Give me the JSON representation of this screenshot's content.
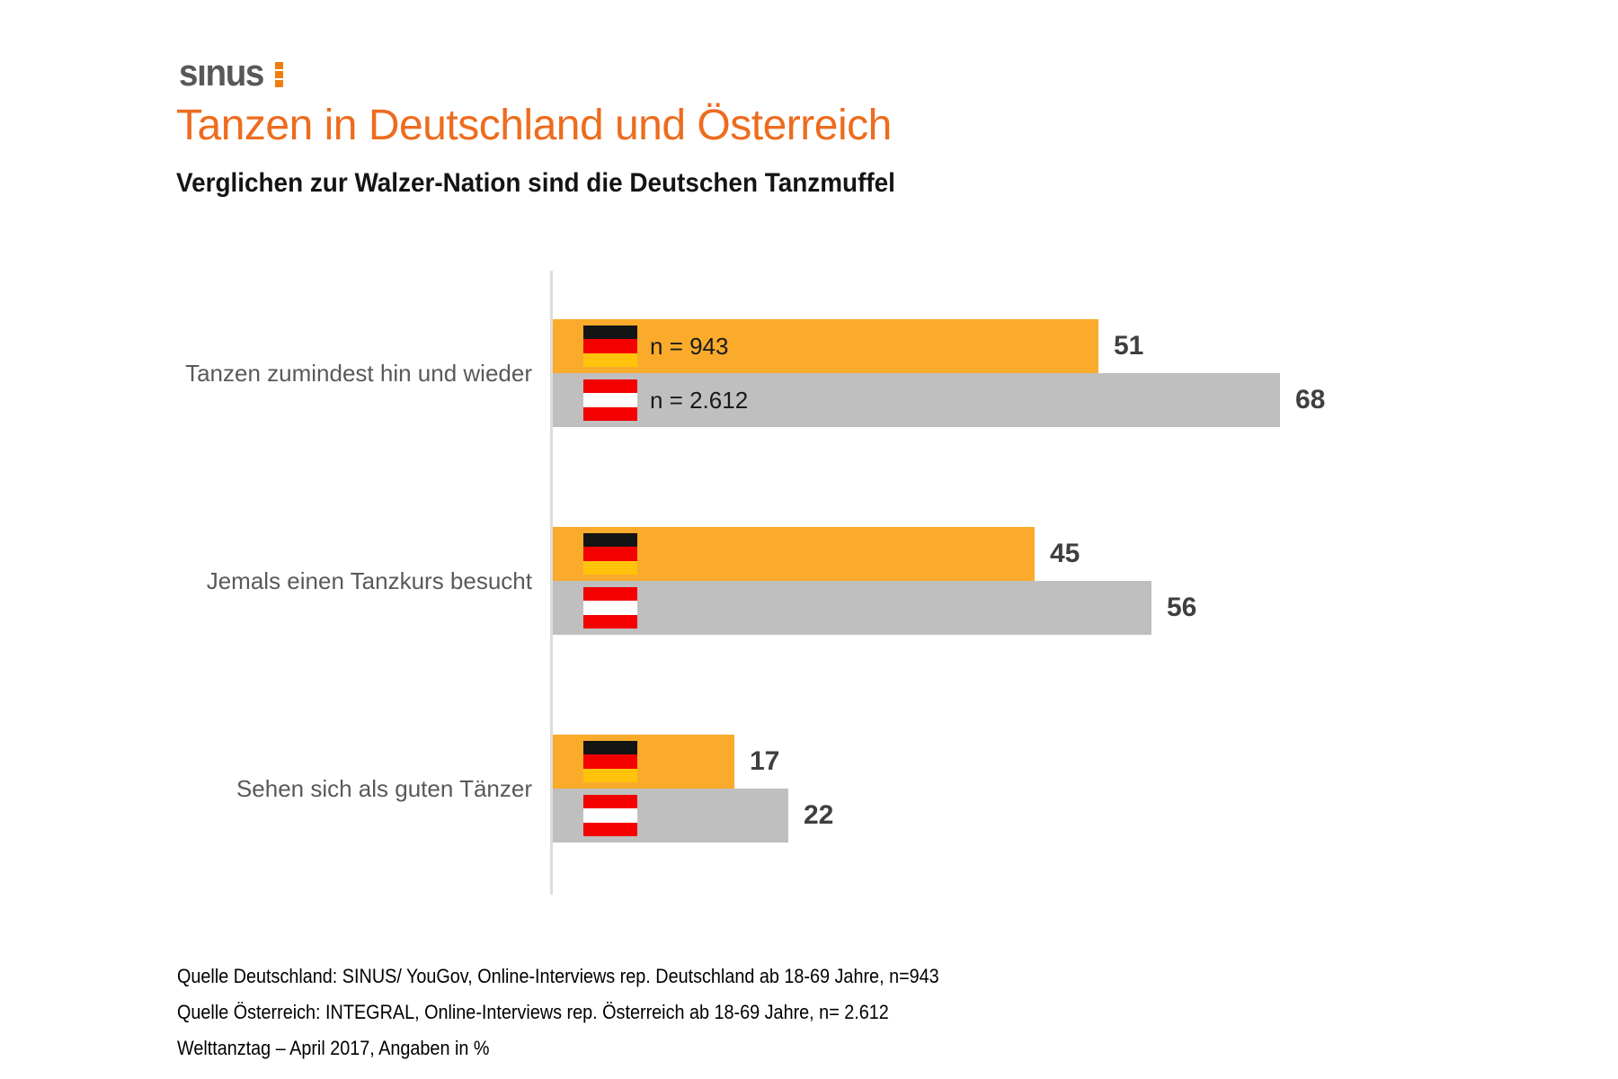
{
  "brand": {
    "logo_text": "sınus"
  },
  "header": {
    "title": "Tanzen in Deutschland und Österreich",
    "subtitle": "Verglichen zur Walzer-Nation sind die Deutschen Tanzmuffel"
  },
  "chart_data": {
    "type": "bar",
    "orientation": "horizontal",
    "title": "Tanzen in Deutschland und Österreich",
    "subtitle": "Verglichen zur Walzer-Nation sind die Deutschen Tanzmuffel",
    "unit": "%",
    "grid": false,
    "legend": "flag icons inline on bars",
    "value_labels": true,
    "categories": [
      "Tanzen zumindest hin und wieder",
      "Jemals einen Tanzkurs besucht",
      "Sehen sich als guten Tänzer"
    ],
    "series": [
      {
        "name": "Deutschland",
        "flag": "germany",
        "flag_stripes": [
          "#141414",
          "#F40000",
          "#FFC30B"
        ],
        "color": "#FAAB2B",
        "sample_label": "n = 943",
        "values": [
          51,
          45,
          17
        ]
      },
      {
        "name": "Österreich",
        "flag": "austria",
        "flag_stripes": [
          "#F40000",
          "#FFFFFF",
          "#F40000"
        ],
        "color": "#BFBFBF",
        "sample_label": "n = 2.612",
        "values": [
          68,
          56,
          22
        ]
      }
    ]
  },
  "footer": {
    "lines": [
      "Quelle Deutschland: SINUS/ YouGov, Online-Interviews rep. Deutschland ab 18-69 Jahre, n=943",
      "Quelle Österreich: INTEGRAL, Online-Interviews rep. Österreich ab 18-69 Jahre, n= 2.612",
      "Welttanztag – April 2017, Angaben in %"
    ]
  },
  "colors": {
    "accent_orange": "#ED6C1E",
    "logo_gray": "#58585A",
    "logo_colon_orange": "#F07D0C",
    "bar_germany": "#FAAB2B",
    "bar_austria": "#BFBFBF",
    "axis_line": "#DCDCDC",
    "category_label": "#595959",
    "value_label": "#3F3F3F",
    "footer_text": "#000000"
  }
}
